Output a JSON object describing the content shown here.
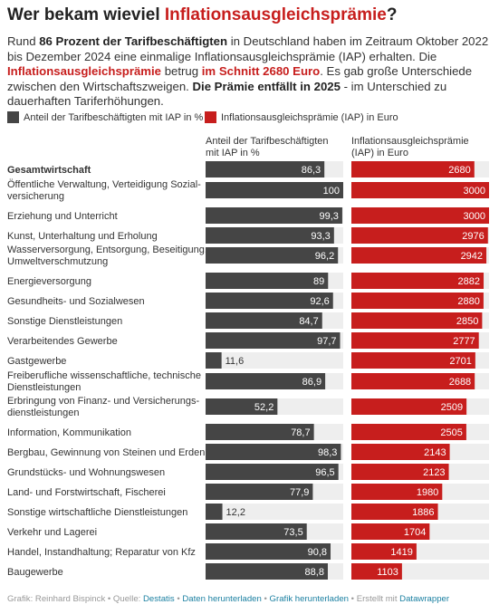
{
  "title": {
    "prefix": "Wer bekam wieviel ",
    "highlight": "Inflationsausgleichsprämie",
    "suffix": "?"
  },
  "intro": {
    "t1": "Rund ",
    "b1": "86 Prozent der Tarifbeschäftigten",
    "t2": " in Deutschland haben im Zeitraum Oktober 2022 bis Dezember 2024 eine einmalige Inflationsausgleichsprämie (IAP) erhalten. Die ",
    "r1": "Inflationsausgleichsprämie",
    "t3": " betrug ",
    "r2": "im Schnitt 2680 Euro",
    "t4": ". Es gab große Unterschiede zwischen den Wirtschaftszweigen. ",
    "b2": "Die Prämie entfällt in 2025",
    "t5": " - im Unterschied zu dauerhaften Tariferhöhungen."
  },
  "colors": {
    "share": "#454545",
    "iap": "#c71e1d",
    "track": "#eeeeee",
    "accent": "#c71e1d",
    "link": "#1d81a2"
  },
  "chart_data": {
    "type": "bar",
    "legend": {
      "share": "Anteil der Tarifbeschäftigten mit IAP in %",
      "iap": "Inflationsausgleichsprämie (IAP) in Euro"
    },
    "column_headers": {
      "share": [
        "Anteil der Tarifbeschäftigten",
        "mit IAP in %"
      ],
      "iap": [
        "Inflationsausgleichsprämie",
        "(IAP) in Euro"
      ]
    },
    "share_max": 100,
    "iap_max": 3000,
    "rows": [
      {
        "label": [
          "Gesamtwirtschaft"
        ],
        "bold": true,
        "share": "86,3",
        "share_value": 86.3,
        "iap": "2680",
        "iap_value": 2680
      },
      {
        "label": [
          "Öffentliche Verwaltung, Verteidigung Sozial-",
          "versicherung"
        ],
        "share": "100",
        "share_value": 100,
        "iap": "3000",
        "iap_value": 3000
      },
      {
        "label": [
          "Erziehung und Unterricht"
        ],
        "share": "99,3",
        "share_value": 99.3,
        "iap": "3000",
        "iap_value": 3000
      },
      {
        "label": [
          "Kunst, Unterhaltung und Erholung"
        ],
        "share": "93,3",
        "share_value": 93.3,
        "iap": "2976",
        "iap_value": 2976
      },
      {
        "label": [
          "Wasserversorgung, Entsorgung, Beseitigung,",
          "Umweltverschmutzung"
        ],
        "share": "96,2",
        "share_value": 96.2,
        "iap": "2942",
        "iap_value": 2942
      },
      {
        "label": [
          "Energieversorgung"
        ],
        "share": "89",
        "share_value": 89,
        "iap": "2882",
        "iap_value": 2882
      },
      {
        "label": [
          "Gesundheits- und Sozialwesen"
        ],
        "share": "92,6",
        "share_value": 92.6,
        "iap": "2880",
        "iap_value": 2880
      },
      {
        "label": [
          "Sonstige Dienstleistungen"
        ],
        "share": "84,7",
        "share_value": 84.7,
        "iap": "2850",
        "iap_value": 2850
      },
      {
        "label": [
          "Verarbeitendes Gewerbe"
        ],
        "share": "97,7",
        "share_value": 97.7,
        "iap": "2777",
        "iap_value": 2777
      },
      {
        "label": [
          "Gastgewerbe"
        ],
        "share": "11,6",
        "share_value": 11.6,
        "iap": "2701",
        "iap_value": 2701
      },
      {
        "label": [
          "Freiberufliche wissenschaftliche, technische",
          "Dienstleistungen"
        ],
        "share": "86,9",
        "share_value": 86.9,
        "iap": "2688",
        "iap_value": 2688
      },
      {
        "label": [
          "Erbringung von Finanz- und Versicherungs-",
          "dienstleistungen"
        ],
        "share": "52,2",
        "share_value": 52.2,
        "iap": "2509",
        "iap_value": 2509
      },
      {
        "label": [
          "Information, Kommunikation"
        ],
        "share": "78,7",
        "share_value": 78.7,
        "iap": "2505",
        "iap_value": 2505
      },
      {
        "label": [
          "Bergbau, Gewinnung von Steinen und Erden"
        ],
        "share": "98,3",
        "share_value": 98.3,
        "iap": "2143",
        "iap_value": 2143
      },
      {
        "label": [
          "Grundstücks- und Wohnungswesen"
        ],
        "share": "96,5",
        "share_value": 96.5,
        "iap": "2123",
        "iap_value": 2123
      },
      {
        "label": [
          "Land- und Forstwirtschaft, Fischerei"
        ],
        "share": "77,9",
        "share_value": 77.9,
        "iap": "1980",
        "iap_value": 1980
      },
      {
        "label": [
          "Sonstige wirtschaftliche Dienstleistungen"
        ],
        "share": "12,2",
        "share_value": 12.2,
        "iap": "1886",
        "iap_value": 1886
      },
      {
        "label": [
          "Verkehr und Lagerei"
        ],
        "share": "73,5",
        "share_value": 73.5,
        "iap": "1704",
        "iap_value": 1704
      },
      {
        "label": [
          "Handel, Instandhaltung; Reparatur von Kfz"
        ],
        "share": "90,8",
        "share_value": 90.8,
        "iap": "1419",
        "iap_value": 1419
      },
      {
        "label": [
          "Baugewerbe"
        ],
        "share": "88,8",
        "share_value": 88.8,
        "iap": "1103",
        "iap_value": 1103
      }
    ]
  },
  "footer": {
    "prefix": "Grafik: Reinhard Bispinck • Quelle: ",
    "source": "Destatis",
    "sep1": " • ",
    "download_data": "Daten herunterladen",
    "sep2": " • ",
    "download_graphic": "Grafik herunterladen",
    "sep3": " • Erstellt mit ",
    "tool": "Datawrapper"
  }
}
